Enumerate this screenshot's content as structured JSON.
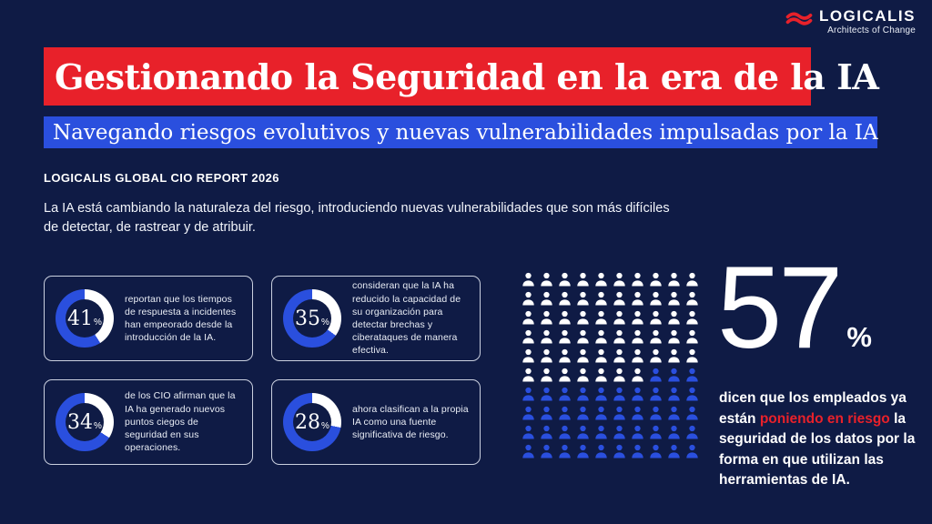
{
  "colors": {
    "background": "#0F1B45",
    "accent_red": "#E8212A",
    "accent_blue": "#2A4FDE",
    "white": "#FFFFFF"
  },
  "logo": {
    "name": "LOGICALIS",
    "tagline": "Architects of Change"
  },
  "header": {
    "title": "Gestionando la Seguridad en la era de la IA",
    "subtitle": "Navegando riesgos evolutivos y nuevas vulnerabilidades impulsadas por la IA"
  },
  "report_label": "LOGICALIS GLOBAL CIO REPORT 2026",
  "intro": "La IA está cambiando la naturaleza del riesgo, introduciendo nuevas vulnerabilidades que son más difíciles de detectar, de rastrear y de atribuir.",
  "stat_cards": [
    {
      "value": 41,
      "unit": "%",
      "text": "reportan que los tiempos de respuesta a incidentes han empeorado desde la introducción de la IA."
    },
    {
      "value": 35,
      "unit": "%",
      "text": "consideran que la IA ha reducido la capacidad de su organización para detectar brechas y ciberataques de manera efectiva."
    },
    {
      "value": 34,
      "unit": "%",
      "text": "de los CIO afirman que la IA ha generado nuevos puntos ciegos de seguridad en sus operaciones."
    },
    {
      "value": 28,
      "unit": "%",
      "text": "ahora clasifican a la propia IA como una fuente significativa de riesgo."
    }
  ],
  "pictogram": {
    "total": 100,
    "columns": 10,
    "highlight_count": 57,
    "highlight_color": "#FFFFFF",
    "rest_color": "#2A4FDE"
  },
  "headline_stat": {
    "value": "57",
    "unit": "%",
    "text_before": "dicen que los empleados ya están ",
    "text_highlight": "poniendo en riesgo",
    "text_after": " la seguridad de los datos por la forma en que utilizan las herramientas de IA."
  },
  "chart_data": [
    {
      "type": "pie",
      "style": "donut",
      "center_label": "41%",
      "values": [
        41,
        59
      ],
      "labels": [
        "reportan que los tiempos de respuesta a incidentes han empeorado desde la introducción de la IA",
        "resto"
      ],
      "colors": [
        "#FFFFFF",
        "#2A4FDE"
      ]
    },
    {
      "type": "pie",
      "style": "donut",
      "center_label": "35%",
      "values": [
        35,
        65
      ],
      "labels": [
        "consideran que la IA ha reducido la capacidad de su organización para detectar brechas y ciberataques de manera efectiva",
        "resto"
      ],
      "colors": [
        "#FFFFFF",
        "#2A4FDE"
      ]
    },
    {
      "type": "pie",
      "style": "donut",
      "center_label": "34%",
      "values": [
        34,
        66
      ],
      "labels": [
        "de los CIO afirman que la IA ha generado nuevos puntos ciegos de seguridad en sus operaciones",
        "resto"
      ],
      "colors": [
        "#FFFFFF",
        "#2A4FDE"
      ]
    },
    {
      "type": "pie",
      "style": "donut",
      "center_label": "28%",
      "values": [
        28,
        72
      ],
      "labels": [
        "ahora clasifican a la propia IA como una fuente significativa de riesgo",
        "resto"
      ],
      "colors": [
        "#FFFFFF",
        "#2A4FDE"
      ]
    },
    {
      "type": "pie",
      "style": "waffle-grid-10x10",
      "values": [
        57,
        43
      ],
      "labels": [
        "dicen que los empleados ya están poniendo en riesgo la seguridad de los datos por la forma en que utilizan las herramientas de IA",
        "resto"
      ],
      "colors": [
        "#FFFFFF",
        "#2A4FDE"
      ]
    }
  ]
}
